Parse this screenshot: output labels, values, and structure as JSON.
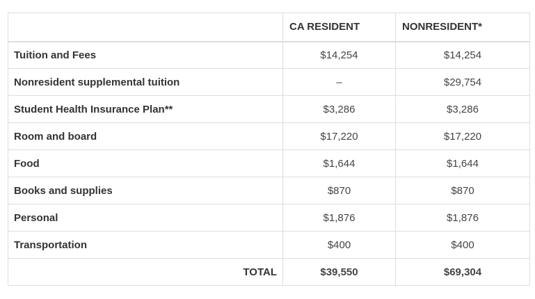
{
  "table": {
    "headers": [
      "",
      "CA RESIDENT",
      "NONRESIDENT*"
    ],
    "rows": [
      {
        "label": "Tuition and Fees",
        "ca": "$14,254",
        "non": "$14,254"
      },
      {
        "label": "Nonresident supplemental tuition",
        "ca": "–",
        "non": "$29,754"
      },
      {
        "label": "Student Health Insurance Plan**",
        "ca": "$3,286",
        "non": "$3,286"
      },
      {
        "label": "Room and board",
        "ca": "$17,220",
        "non": "$17,220"
      },
      {
        "label": "Food",
        "ca": "$1,644",
        "non": "$1,644"
      },
      {
        "label": "Books and supplies",
        "ca": "$870",
        "non": "$870"
      },
      {
        "label": "Personal",
        "ca": "$1,876",
        "non": "$1,876"
      },
      {
        "label": "Transportation",
        "ca": "$400",
        "non": "$400"
      }
    ],
    "total": {
      "label": "TOTAL",
      "ca": "$39,550",
      "non": "$69,304"
    }
  }
}
